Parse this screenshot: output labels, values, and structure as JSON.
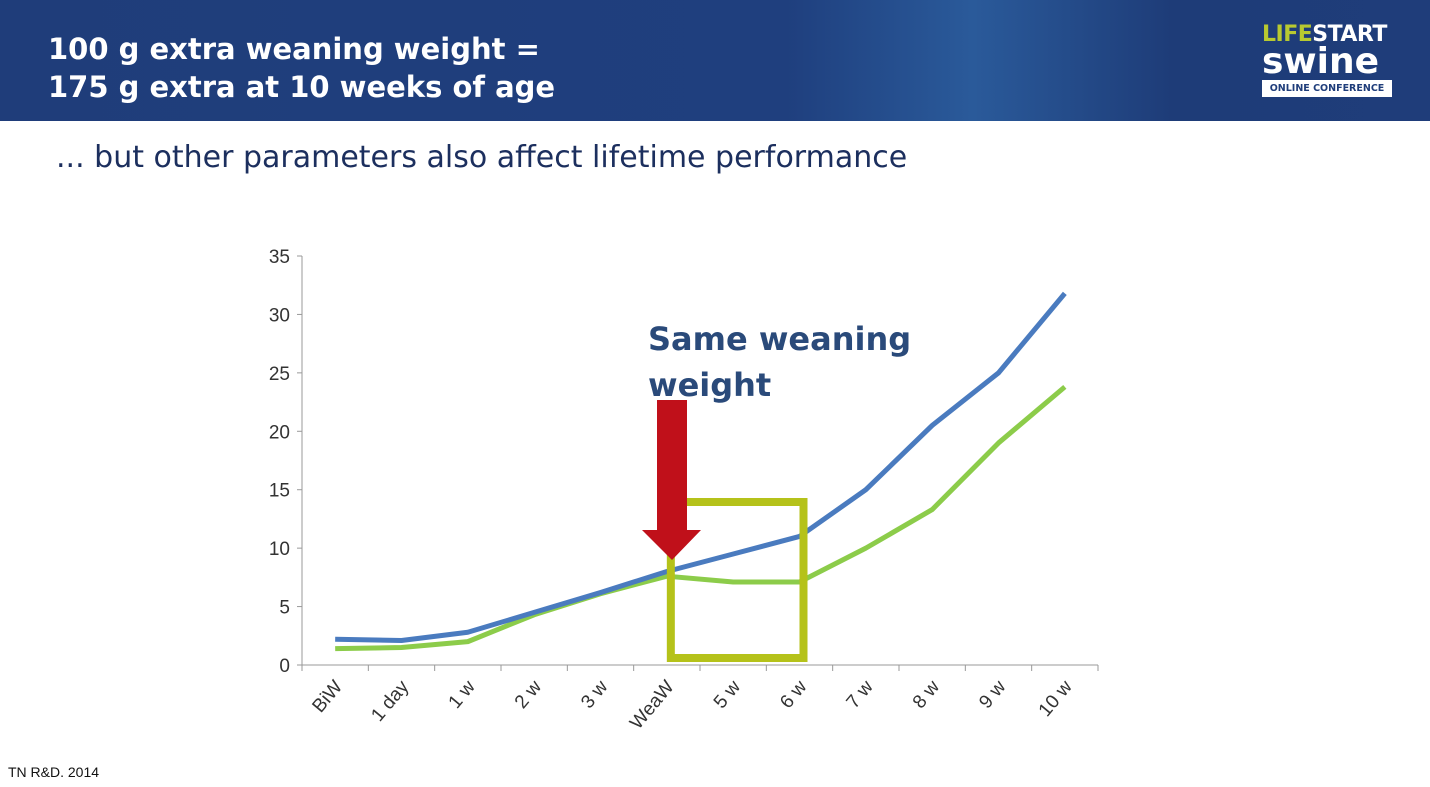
{
  "header": {
    "title": "100 g extra weaning weight =\n175 g extra at 10 weeks of age"
  },
  "logo": {
    "life": "LIFE",
    "start": "START",
    "swine": "swine",
    "conference": "ONLINE CONFERENCE"
  },
  "subtitle": "... but other parameters also affect lifetime performance",
  "footnote": "TN R&D. 2014",
  "chart_data": {
    "type": "line",
    "categories": [
      "BiW",
      "1 day",
      "1 w",
      "2 w",
      "3 w",
      "WeaW",
      "5 w",
      "6 w",
      "7 w",
      "8 w",
      "9 w",
      "10 w"
    ],
    "series": [
      {
        "name": "blue",
        "color": "#4a7bbf",
        "values": [
          2.2,
          2.1,
          2.8,
          4.5,
          6.2,
          8.0,
          9.5,
          11.0,
          15.0,
          20.5,
          25.0,
          31.8
        ]
      },
      {
        "name": "green",
        "color": "#8ccc4a",
        "values": [
          1.4,
          1.5,
          2.0,
          4.3,
          6.1,
          7.6,
          7.1,
          7.1,
          10.0,
          13.3,
          19.0,
          23.8
        ]
      }
    ],
    "ylim": [
      0,
      35
    ],
    "yticks": [
      0,
      5,
      10,
      15,
      20,
      25,
      30,
      35
    ],
    "annotation": "Same weaning\nweight",
    "highlight_range": [
      "WeaW",
      "6 w"
    ],
    "xlabel": "",
    "ylabel": "",
    "grid": false
  }
}
